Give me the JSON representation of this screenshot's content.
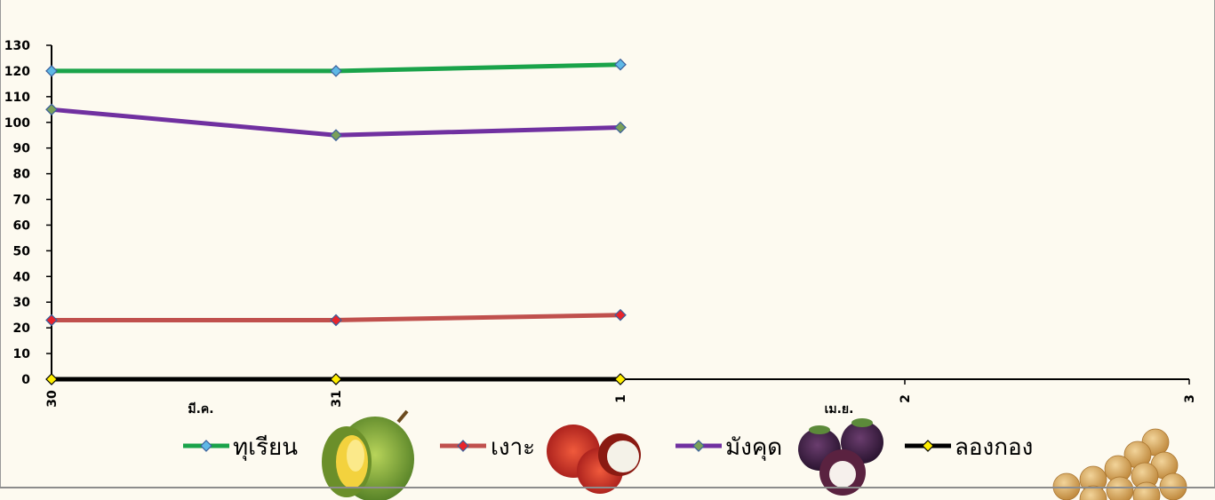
{
  "chart_data": {
    "type": "line",
    "title": "",
    "xlabel": "",
    "ylabel": "",
    "ylim": [
      0,
      130
    ],
    "yticks": [
      0,
      10,
      20,
      30,
      40,
      50,
      60,
      70,
      80,
      90,
      100,
      110,
      120,
      130
    ],
    "x_tick_labels": [
      "30",
      "31",
      "1",
      "2",
      "3"
    ],
    "month_labels": [
      "มี.ค.",
      "เม.ย."
    ],
    "grid": false,
    "legend_position": "bottom",
    "series": [
      {
        "name": "ทุเรียน",
        "values": [
          120,
          120,
          122.5
        ],
        "color": "#1aa34a",
        "marker_color": "#5fb8e6",
        "icon": "durian-image"
      },
      {
        "name": "เงาะ",
        "values": [
          23,
          23,
          25
        ],
        "color": "#c0504d",
        "marker_color": "#e8232a",
        "icon": "rambutan-image"
      },
      {
        "name": "มังคุด",
        "values": [
          105,
          95,
          98
        ],
        "color": "#7030a0",
        "marker_color": "#7aa05a",
        "icon": "mangosteen-image"
      },
      {
        "name": "ลองกอง",
        "values": [
          0,
          0,
          0
        ],
        "color": "#000000",
        "marker_color": "#ffee00",
        "icon": "longkong-image"
      }
    ]
  }
}
